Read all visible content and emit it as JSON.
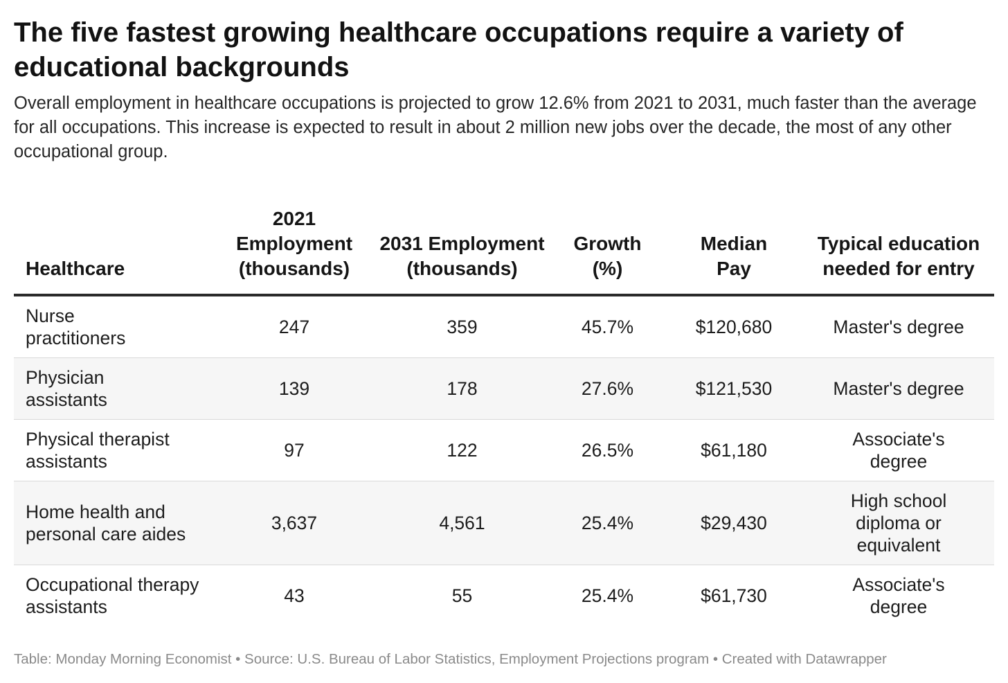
{
  "header": {
    "title": "The five fastest growing healthcare occupations require a variety of educational backgrounds",
    "subtitle": "Overall employment in healthcare occupations is projected to grow 12.6% from 2021 to 2031, much faster than the average for all occupations. This increase is expected to result in about 2 million new jobs over the decade, the most of any other occupational group."
  },
  "chart_data": {
    "type": "table",
    "columns": [
      "Healthcare",
      "2021 Employment (thousands)",
      "2031 Employment (thousands)",
      "Growth (%)",
      "Median Pay",
      "Typical education needed for entry"
    ],
    "rows": [
      [
        "Nurse practitioners",
        "247",
        "359",
        "45.7%",
        "$120,680",
        "Master's degree"
      ],
      [
        "Physician assistants",
        "139",
        "178",
        "27.6%",
        "$121,530",
        "Master's degree"
      ],
      [
        "Physical therapist assistants",
        "97",
        "122",
        "26.5%",
        "$61,180",
        "Associate's degree"
      ],
      [
        "Home health and personal care aides",
        "3,637",
        "4,561",
        "25.4%",
        "$29,430",
        "High school diploma or equivalent"
      ],
      [
        "Occupational therapy assistants",
        "43",
        "55",
        "25.4%",
        "$61,730",
        "Associate's degree"
      ]
    ],
    "row_shading": "alternating"
  },
  "footer": {
    "text": "Table: Monday Morning Economist • Source: U.S. Bureau of Labor Statistics, Employment Projections program • Created with Datawrapper"
  },
  "colors": {
    "text": "#181818",
    "footer": "#8a8a8a",
    "header_rule": "#2a2a2a",
    "row_divider": "#d9d9d9",
    "shaded_row": "#f6f6f6"
  }
}
